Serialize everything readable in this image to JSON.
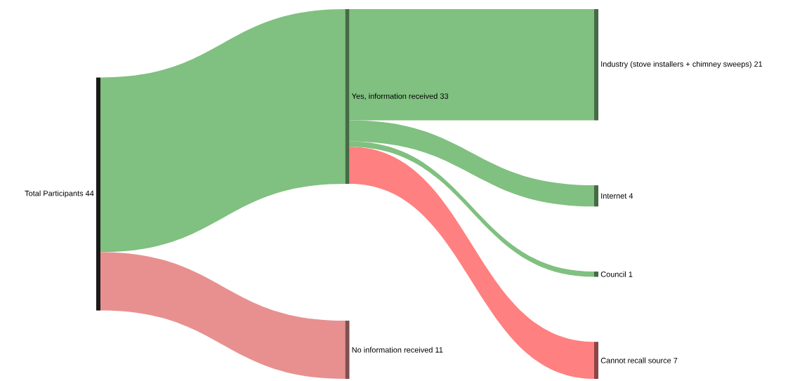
{
  "chart_data": {
    "type": "other",
    "categories": [
      "Total Participants",
      "Yes, information received",
      "No information received",
      "Industry (stove installers + chimney sweeps)",
      "Internet",
      "Council",
      "Cannot recall source"
    ],
    "data_labels": true,
    "values": [
      44,
      33,
      11,
      21,
      4,
      1,
      7
    ],
    "colors": [
      "#1a1a1a",
      "#80c080",
      "#e89090",
      "#80c080",
      "#80c080",
      "#80c080",
      "#ff8080"
    ]
  }
}
